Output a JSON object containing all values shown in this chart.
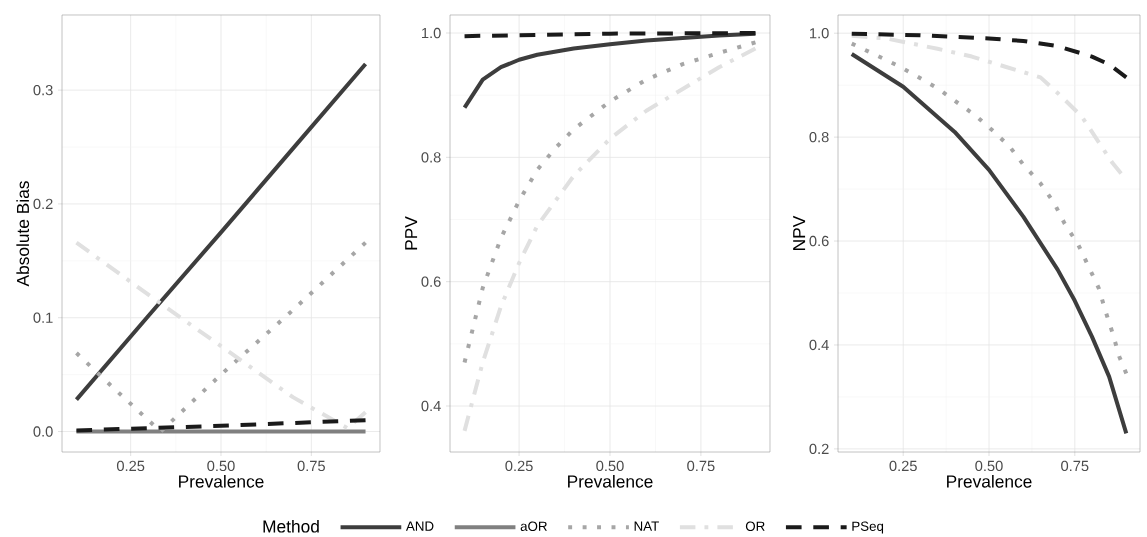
{
  "chart_data": [
    {
      "type": "line",
      "xlabel": "Prevalence",
      "ylabel": "Absolute Bias",
      "xlim": [
        0.06,
        0.94
      ],
      "ylim": [
        -0.018,
        0.366
      ],
      "xticks": [
        {
          "value": 0.25,
          "label": "0.25"
        },
        {
          "value": 0.5,
          "label": "0.50"
        },
        {
          "value": 0.75,
          "label": "0.75"
        }
      ],
      "yticks": [
        {
          "value": 0,
          "label": "0.0"
        },
        {
          "value": 0.1,
          "label": "0.1"
        },
        {
          "value": 0.2,
          "label": "0.2"
        },
        {
          "value": 0.3,
          "label": "0.3"
        }
      ],
      "grid": true,
      "legend": "bottom",
      "legend_title": "Method",
      "series": [
        {
          "name": "AND",
          "color": "#3d3d3d",
          "line_style": "solid",
          "x": [
            0.1,
            0.3,
            0.5,
            0.7,
            0.9
          ],
          "values": [
            0.028,
            0.102,
            0.175,
            0.249,
            0.323
          ]
        },
        {
          "name": "aOR",
          "color": "#808080",
          "line_style": "solid",
          "x": [
            0.1,
            0.5,
            0.9
          ],
          "values": [
            0.0,
            0.0,
            0.0
          ]
        },
        {
          "name": "NAT",
          "color": "#a6a6a6",
          "line_style": "dotted",
          "x": [
            0.1,
            0.2,
            0.333,
            0.5,
            0.7,
            0.9
          ],
          "values": [
            0.069,
            0.039,
            0.0,
            0.05,
            0.107,
            0.166
          ]
        },
        {
          "name": "OR",
          "color": "#e0e0e0",
          "line_style": "dashdot",
          "x": [
            0.1,
            0.3,
            0.5,
            0.7,
            0.85,
            0.9
          ],
          "values": [
            0.166,
            0.12,
            0.075,
            0.03,
            0.003,
            0.017
          ]
        },
        {
          "name": "PSeq",
          "color": "#1a1a1a",
          "line_style": "dashed",
          "x": [
            0.1,
            0.5,
            0.9
          ],
          "values": [
            0.001,
            0.005,
            0.01
          ]
        }
      ]
    },
    {
      "type": "line",
      "xlabel": "Prevalence",
      "ylabel": "PPV",
      "xlim": [
        0.06,
        0.94
      ],
      "ylim": [
        0.326,
        1.029
      ],
      "xticks": [
        {
          "value": 0.25,
          "label": "0.25"
        },
        {
          "value": 0.5,
          "label": "0.50"
        },
        {
          "value": 0.75,
          "label": "0.75"
        }
      ],
      "yticks": [
        {
          "value": 0.4,
          "label": "0.4"
        },
        {
          "value": 0.6,
          "label": "0.6"
        },
        {
          "value": 0.8,
          "label": "0.8"
        },
        {
          "value": 1.0,
          "label": "1.0"
        }
      ],
      "grid": true,
      "series": [
        {
          "color": "#3d3d3d",
          "line_style": "solid",
          "x": [
            0.1,
            0.15,
            0.2,
            0.25,
            0.3,
            0.4,
            0.5,
            0.6,
            0.7,
            0.8,
            0.9
          ],
          "values": [
            0.88,
            0.925,
            0.945,
            0.957,
            0.965,
            0.975,
            0.982,
            0.988,
            0.992,
            0.996,
            0.999
          ]
        },
        {
          "color": "#a6a6a6",
          "line_style": "dotted",
          "x": [
            0.1,
            0.15,
            0.2,
            0.25,
            0.3,
            0.35,
            0.4,
            0.5,
            0.6,
            0.7,
            0.8,
            0.9
          ],
          "values": [
            0.47,
            0.59,
            0.67,
            0.73,
            0.78,
            0.815,
            0.845,
            0.89,
            0.925,
            0.95,
            0.968,
            0.985
          ]
        },
        {
          "color": "#e0e0e0",
          "line_style": "dashdot",
          "x": [
            0.1,
            0.15,
            0.2,
            0.25,
            0.3,
            0.4,
            0.5,
            0.6,
            0.7,
            0.8,
            0.9
          ],
          "values": [
            0.36,
            0.47,
            0.56,
            0.63,
            0.69,
            0.77,
            0.83,
            0.875,
            0.91,
            0.945,
            0.975
          ]
        },
        {
          "color": "#1a1a1a",
          "line_style": "dashed",
          "x": [
            0.1,
            0.5,
            0.9
          ],
          "values": [
            0.995,
            0.999,
            1.0
          ]
        }
      ]
    },
    {
      "type": "line",
      "xlabel": "Prevalence",
      "ylabel": "NPV",
      "xlim": [
        0.06,
        0.94
      ],
      "ylim": [
        0.194,
        1.035
      ],
      "xticks": [
        {
          "value": 0.25,
          "label": "0.25"
        },
        {
          "value": 0.5,
          "label": "0.50"
        },
        {
          "value": 0.75,
          "label": "0.75"
        }
      ],
      "yticks": [
        {
          "value": 0.2,
          "label": "0.2"
        },
        {
          "value": 0.4,
          "label": "0.4"
        },
        {
          "value": 0.6,
          "label": "0.6"
        },
        {
          "value": 0.8,
          "label": "0.8"
        },
        {
          "value": 1.0,
          "label": "1.0"
        }
      ],
      "grid": true,
      "series": [
        {
          "color": "#3d3d3d",
          "line_style": "solid",
          "x": [
            0.1,
            0.25,
            0.4,
            0.5,
            0.6,
            0.7,
            0.75,
            0.8,
            0.85,
            0.9
          ],
          "values": [
            0.96,
            0.897,
            0.81,
            0.737,
            0.647,
            0.545,
            0.485,
            0.416,
            0.339,
            0.23
          ]
        },
        {
          "color": "#a6a6a6",
          "line_style": "dotted",
          "x": [
            0.1,
            0.17,
            0.23,
            0.29,
            0.35,
            0.4,
            0.46,
            0.51,
            0.56,
            0.6,
            0.65,
            0.69,
            0.72,
            0.76,
            0.79,
            0.82,
            0.84,
            0.86,
            0.88,
            0.9
          ],
          "values": [
            0.98,
            0.958,
            0.939,
            0.917,
            0.894,
            0.87,
            0.842,
            0.813,
            0.782,
            0.747,
            0.711,
            0.673,
            0.634,
            0.593,
            0.551,
            0.509,
            0.464,
            0.423,
            0.377,
            0.345
          ]
        },
        {
          "color": "#e0e0e0",
          "line_style": "dashdot",
          "x": [
            0.1,
            0.2,
            0.35,
            0.45,
            0.55,
            0.65,
            0.7,
            0.77,
            0.82,
            0.86,
            0.885
          ],
          "values": [
            0.995,
            0.99,
            0.97,
            0.955,
            0.935,
            0.915,
            0.885,
            0.84,
            0.79,
            0.75,
            0.73
          ]
        },
        {
          "color": "#1a1a1a",
          "line_style": "dashed",
          "x": [
            0.1,
            0.3,
            0.5,
            0.6,
            0.7,
            0.8,
            0.85,
            0.9
          ],
          "values": [
            0.999,
            0.996,
            0.99,
            0.985,
            0.975,
            0.955,
            0.94,
            0.915
          ]
        }
      ]
    }
  ]
}
